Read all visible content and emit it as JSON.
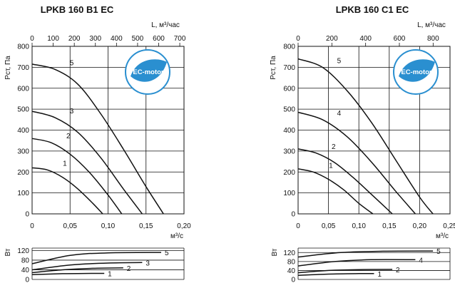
{
  "chart_data": [
    {
      "type": "line",
      "title": "LPKB 160 B1 EC",
      "logo_text": "EC-motor",
      "pressure_chart": {
        "ylabel": "Рст, Па",
        "xlabel": "м³/с",
        "top_axis_label": "L, м³/час",
        "xlim": [
          0,
          0.2
        ],
        "ylim": [
          0,
          800
        ],
        "x_ticks": [
          "0",
          "0,05",
          "0,10",
          "0,15",
          "0,20"
        ],
        "y_ticks": [
          "0",
          "100",
          "200",
          "300",
          "400",
          "500",
          "600",
          "700",
          "800"
        ],
        "top_ticks": [
          "0",
          "100",
          "200",
          "300",
          "400",
          "500",
          "600",
          "700"
        ],
        "top_max": 720,
        "grid": true,
        "series": [
          {
            "name": "1",
            "x": [
              0,
              0.02,
              0.04,
              0.06,
              0.08,
              0.093
            ],
            "y": [
              220,
              210,
              175,
              120,
              50,
              0
            ]
          },
          {
            "name": "2",
            "x": [
              0,
              0.025,
              0.05,
              0.075,
              0.1,
              0.118
            ],
            "y": [
              360,
              340,
              285,
              200,
              90,
              0
            ]
          },
          {
            "name": "3",
            "x": [
              0,
              0.03,
              0.06,
              0.09,
              0.12,
              0.145
            ],
            "y": [
              490,
              460,
              390,
              270,
              120,
              0
            ]
          },
          {
            "name": "5",
            "x": [
              0,
              0.03,
              0.06,
              0.09,
              0.12,
              0.15,
              0.173
            ],
            "y": [
              715,
              690,
              620,
              480,
              310,
              130,
              0
            ]
          }
        ]
      },
      "power_chart": {
        "ylabel": "Вт",
        "ylim": [
          0,
          130
        ],
        "y_ticks": [
          "0",
          "40",
          "80",
          "120"
        ],
        "series": [
          {
            "name": "1",
            "x": [
              0,
              0.04,
              0.08,
              0.095
            ],
            "y": [
              20,
              24,
              25,
              25
            ]
          },
          {
            "name": "2",
            "x": [
              0,
              0.04,
              0.08,
              0.12
            ],
            "y": [
              28,
              40,
              46,
              48
            ]
          },
          {
            "name": "3",
            "x": [
              0,
              0.05,
              0.1,
              0.145
            ],
            "y": [
              40,
              60,
              68,
              70
            ]
          },
          {
            "name": "5",
            "x": [
              0,
              0.05,
              0.1,
              0.17
            ],
            "y": [
              65,
              100,
              110,
              112
            ]
          }
        ]
      }
    },
    {
      "type": "line",
      "title": "LPKB 160 C1 EC",
      "logo_text": "EC-motor",
      "pressure_chart": {
        "ylabel": "Рст, Па",
        "xlabel": "м³/с",
        "top_axis_label": "L, м³/час",
        "xlim": [
          0,
          0.25
        ],
        "ylim": [
          0,
          800
        ],
        "x_ticks": [
          "0",
          "0,05",
          "0,10",
          "0,15",
          "0,20",
          "0,25"
        ],
        "y_ticks": [
          "0",
          "100",
          "200",
          "300",
          "400",
          "500",
          "600",
          "700",
          "800"
        ],
        "top_ticks": [
          "0",
          "200",
          "400",
          "600",
          "800"
        ],
        "top_max": 900,
        "grid": true,
        "series": [
          {
            "name": "1",
            "x": [
              0,
              0.025,
              0.05,
              0.075,
              0.1,
              0.123
            ],
            "y": [
              215,
              200,
              165,
              115,
              50,
              0
            ]
          },
          {
            "name": "2",
            "x": [
              0,
              0.03,
              0.06,
              0.09,
              0.12,
              0.155
            ],
            "y": [
              310,
              290,
              245,
              175,
              95,
              0
            ]
          },
          {
            "name": "4",
            "x": [
              0,
              0.04,
              0.08,
              0.12,
              0.16,
              0.193
            ],
            "y": [
              485,
              450,
              370,
              250,
              110,
              0
            ]
          },
          {
            "name": "5",
            "x": [
              0,
              0.04,
              0.08,
              0.12,
              0.16,
              0.2,
              0.222
            ],
            "y": [
              740,
              700,
              590,
              440,
              260,
              80,
              0
            ]
          }
        ]
      },
      "power_chart": {
        "ylabel": "Вт",
        "ylim": [
          0,
          140
        ],
        "y_ticks": [
          "0",
          "40",
          "80",
          "120"
        ],
        "series": [
          {
            "name": "1",
            "x": [
              0,
              0.05,
              0.1,
              0.125
            ],
            "y": [
              18,
              24,
              26,
              26
            ]
          },
          {
            "name": "2",
            "x": [
              0,
              0.05,
              0.1,
              0.155
            ],
            "y": [
              30,
              40,
              44,
              45
            ]
          },
          {
            "name": "4",
            "x": [
              0,
              0.06,
              0.12,
              0.193
            ],
            "y": [
              60,
              80,
              88,
              88
            ]
          },
          {
            "name": "5",
            "x": [
              0,
              0.07,
              0.14,
              0.222
            ],
            "y": [
              100,
              120,
              126,
              127
            ]
          }
        ]
      }
    }
  ]
}
